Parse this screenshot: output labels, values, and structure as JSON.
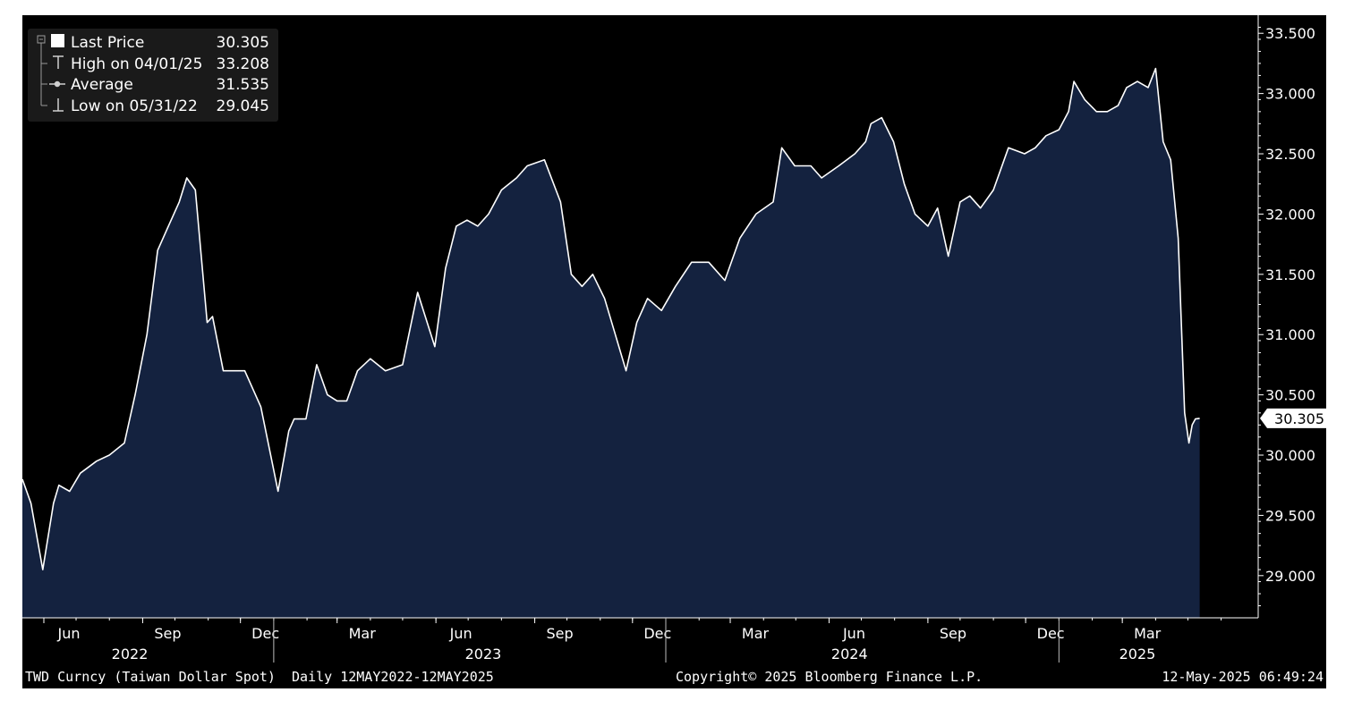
{
  "colors": {
    "background": "#000000",
    "plot_fill": "#14223f",
    "line": "#ffffff",
    "axis": "#ffffff",
    "legend_bg": "#1a1a1a",
    "last_label_bg": "#ffffff",
    "last_label_text": "#000000"
  },
  "legend": {
    "items": [
      {
        "label": "Last Price",
        "value": "30.305",
        "icon": "white-square-icon"
      },
      {
        "label": "High on 04/01/25",
        "value": "33.208",
        "icon": "high-marker-icon"
      },
      {
        "label": "Average",
        "value": "31.535",
        "icon": "average-marker-icon"
      },
      {
        "label": "Low on 05/31/22",
        "value": "29.045",
        "icon": "low-marker-icon"
      }
    ]
  },
  "last_value_label": "30.305",
  "footer": {
    "left": "TWD Curncy (Taiwan Dollar Spot)  Daily 12MAY2022-12MAY2025",
    "center": "Copyright© 2025 Bloomberg Finance L.P.",
    "right": "12-May-2025 06:49:24"
  },
  "chart_data": {
    "type": "area",
    "ylim": [
      28.65,
      33.65
    ],
    "y_ticks": [
      "33.500",
      "33.000",
      "32.500",
      "32.000",
      "31.500",
      "31.000",
      "30.500",
      "30.000",
      "29.500",
      "29.000"
    ],
    "y_tick_values": [
      33.5,
      33.0,
      32.5,
      32.0,
      31.5,
      31.0,
      30.5,
      30.0,
      29.5,
      29.0
    ],
    "x_range": [
      "2022-05-12",
      "2025-06-28"
    ],
    "month_ticks": [
      {
        "label": "Jun",
        "date": "2022-06-01"
      },
      {
        "label": "Sep",
        "date": "2022-09-01"
      },
      {
        "label": "Dec",
        "date": "2022-12-01"
      },
      {
        "label": "Mar",
        "date": "2023-03-01"
      },
      {
        "label": "Jun",
        "date": "2023-06-01"
      },
      {
        "label": "Sep",
        "date": "2023-09-01"
      },
      {
        "label": "Dec",
        "date": "2023-12-01"
      },
      {
        "label": "Mar",
        "date": "2024-03-01"
      },
      {
        "label": "Jun",
        "date": "2024-06-01"
      },
      {
        "label": "Sep",
        "date": "2024-09-01"
      },
      {
        "label": "Dec",
        "date": "2024-12-01"
      },
      {
        "label": "Mar",
        "date": "2025-03-01"
      }
    ],
    "year_labels": [
      {
        "label": "2022",
        "date": "2022-08-20"
      },
      {
        "label": "2023",
        "date": "2023-07-15"
      },
      {
        "label": "2024",
        "date": "2024-06-20"
      },
      {
        "label": "2025",
        "date": "2025-03-15"
      }
    ],
    "year_separators": [
      "2023-01-01",
      "2024-01-01",
      "2025-01-01"
    ],
    "series": [
      {
        "name": "Last Price",
        "x": [
          "2022-05-12",
          "2022-05-20",
          "2022-05-31",
          "2022-06-10",
          "2022-06-15",
          "2022-06-25",
          "2022-07-05",
          "2022-07-20",
          "2022-08-01",
          "2022-08-15",
          "2022-08-25",
          "2022-09-05",
          "2022-09-15",
          "2022-09-25",
          "2022-10-05",
          "2022-10-12",
          "2022-10-20",
          "2022-10-31",
          "2022-11-05",
          "2022-11-15",
          "2022-11-25",
          "2022-12-05",
          "2022-12-20",
          "2023-01-05",
          "2023-01-15",
          "2023-01-20",
          "2023-01-31",
          "2023-02-10",
          "2023-02-20",
          "2023-03-01",
          "2023-03-10",
          "2023-03-20",
          "2023-04-01",
          "2023-04-15",
          "2023-05-01",
          "2023-05-15",
          "2023-05-31",
          "2023-06-10",
          "2023-06-20",
          "2023-06-30",
          "2023-07-10",
          "2023-07-20",
          "2023-08-01",
          "2023-08-15",
          "2023-08-25",
          "2023-09-10",
          "2023-09-25",
          "2023-10-05",
          "2023-10-15",
          "2023-10-25",
          "2023-11-05",
          "2023-11-15",
          "2023-11-25",
          "2023-12-05",
          "2023-12-15",
          "2023-12-28",
          "2024-01-10",
          "2024-01-25",
          "2024-02-10",
          "2024-02-25",
          "2024-03-10",
          "2024-03-25",
          "2024-04-10",
          "2024-04-18",
          "2024-04-30",
          "2024-05-15",
          "2024-05-25",
          "2024-06-10",
          "2024-06-25",
          "2024-07-05",
          "2024-07-10",
          "2024-07-20",
          "2024-07-31",
          "2024-08-10",
          "2024-08-20",
          "2024-09-01",
          "2024-09-10",
          "2024-09-20",
          "2024-10-01",
          "2024-10-10",
          "2024-10-20",
          "2024-11-01",
          "2024-11-15",
          "2024-11-30",
          "2024-12-10",
          "2024-12-20",
          "2025-01-01",
          "2025-01-10",
          "2025-01-15",
          "2025-01-25",
          "2025-02-05",
          "2025-02-15",
          "2025-02-25",
          "2025-03-05",
          "2025-03-15",
          "2025-03-25",
          "2025-04-01",
          "2025-04-08",
          "2025-04-15",
          "2025-04-22",
          "2025-04-28",
          "2025-05-02",
          "2025-05-05",
          "2025-05-08",
          "2025-05-12"
        ],
        "y": [
          29.8,
          29.6,
          29.05,
          29.6,
          29.75,
          29.7,
          29.85,
          29.95,
          30.0,
          30.1,
          30.5,
          31.0,
          31.7,
          31.9,
          32.1,
          32.3,
          32.2,
          31.1,
          31.15,
          30.7,
          30.7,
          30.7,
          30.4,
          29.7,
          30.2,
          30.3,
          30.3,
          30.75,
          30.5,
          30.45,
          30.45,
          30.7,
          30.8,
          30.7,
          30.75,
          31.35,
          30.9,
          31.55,
          31.9,
          31.95,
          31.9,
          32.0,
          32.2,
          32.3,
          32.4,
          32.45,
          32.1,
          31.5,
          31.4,
          31.5,
          31.3,
          31.0,
          30.7,
          31.1,
          31.3,
          31.2,
          31.4,
          31.6,
          31.6,
          31.45,
          31.8,
          32.0,
          32.1,
          32.55,
          32.4,
          32.4,
          32.3,
          32.4,
          32.5,
          32.6,
          32.75,
          32.8,
          32.6,
          32.25,
          32.0,
          31.9,
          32.05,
          31.65,
          32.1,
          32.15,
          32.05,
          32.2,
          32.55,
          32.5,
          32.55,
          32.65,
          32.7,
          32.85,
          33.1,
          32.95,
          32.85,
          32.85,
          32.9,
          33.05,
          33.1,
          33.05,
          33.208,
          32.6,
          32.45,
          31.8,
          30.35,
          30.1,
          30.25,
          30.3,
          30.305
        ]
      }
    ]
  }
}
